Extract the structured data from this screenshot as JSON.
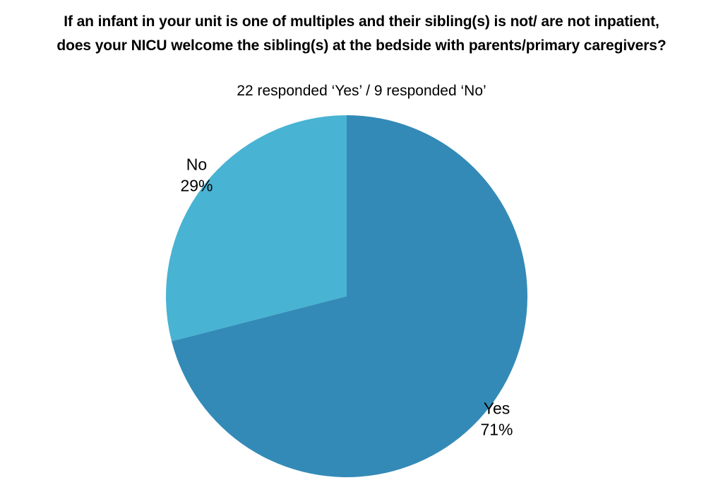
{
  "chart_data": {
    "type": "pie",
    "title": [
      "If an infant in your unit is one of multiples and their sibling(s) is not/ are not inpatient,",
      "does your NICU welcome the sibling(s) at the bedside with parents/primary caregivers?"
    ],
    "subtitle": "22 responded ‘Yes’ / 9 responded ‘No’",
    "slices": [
      {
        "label": "Yes",
        "value": 71,
        "value_label": "71%",
        "color": "#338ab7"
      },
      {
        "label": "No",
        "value": 29,
        "value_label": "29%",
        "color": "#48b3d2"
      }
    ]
  }
}
